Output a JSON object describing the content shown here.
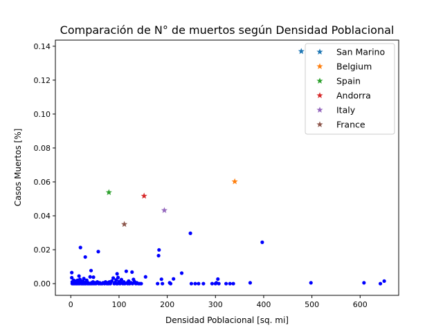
{
  "chart_data": {
    "type": "scatter",
    "title": "Comparación de N° de muertos según Densidad Poblacional",
    "xlabel": "Densidad Poblacional [sq. mi]",
    "ylabel": "Casos Muertos [%]",
    "xlim": [
      -32,
      680
    ],
    "ylim": [
      -0.0069,
      0.1436
    ],
    "xticks": [
      0,
      100,
      200,
      300,
      400,
      500,
      600
    ],
    "yticks": [
      0.0,
      0.02,
      0.04,
      0.06,
      0.08,
      0.1,
      0.12,
      0.14
    ],
    "xtick_labels": [
      "0",
      "100",
      "200",
      "300",
      "400",
      "500",
      "600"
    ],
    "ytick_labels": [
      "0.00",
      "0.02",
      "0.04",
      "0.06",
      "0.08",
      "0.10",
      "0.12",
      "0.14"
    ],
    "grid": false,
    "legend_position": "top-right",
    "background_points": {
      "color": "#0000ff",
      "marker": "dot",
      "points": [
        [
          2,
          0.0065
        ],
        [
          2,
          0.0035
        ],
        [
          3,
          0.001
        ],
        [
          3,
          0.0
        ],
        [
          5,
          0.0005
        ],
        [
          5,
          0.0
        ],
        [
          6,
          0.002
        ],
        [
          7,
          0.0
        ],
        [
          8,
          0.001
        ],
        [
          9,
          0.0003
        ],
        [
          10,
          0.0
        ],
        [
          11,
          0.0015
        ],
        [
          12,
          0.0
        ],
        [
          13,
          0.0005
        ],
        [
          14,
          0.002
        ],
        [
          15,
          0.0
        ],
        [
          16,
          0.001
        ],
        [
          17,
          0.0045
        ],
        [
          18,
          0.0
        ],
        [
          19,
          0.0025
        ],
        [
          20,
          0.0213
        ],
        [
          21,
          0.0005
        ],
        [
          22,
          0.0
        ],
        [
          23,
          0.001
        ],
        [
          24,
          0.0
        ],
        [
          25,
          0.0015
        ],
        [
          26,
          0.0
        ],
        [
          27,
          0.003
        ],
        [
          28,
          0.0005
        ],
        [
          29,
          0.0
        ],
        [
          30,
          0.0157
        ],
        [
          31,
          0.0
        ],
        [
          32,
          0.001
        ],
        [
          33,
          0.002
        ],
        [
          35,
          0.0
        ],
        [
          36,
          0.0005
        ],
        [
          38,
          0.0
        ],
        [
          40,
          0.004
        ],
        [
          41,
          0.0
        ],
        [
          42,
          0.0077
        ],
        [
          43,
          0.0005
        ],
        [
          44,
          0.0
        ],
        [
          46,
          0.001
        ],
        [
          47,
          0.0038
        ],
        [
          48,
          0.0
        ],
        [
          50,
          0.0005
        ],
        [
          52,
          0.0
        ],
        [
          55,
          0.001
        ],
        [
          57,
          0.0189
        ],
        [
          58,
          0.0
        ],
        [
          60,
          0.0005
        ],
        [
          62,
          0.0
        ],
        [
          65,
          0.0
        ],
        [
          67,
          0.0005
        ],
        [
          70,
          0.0
        ],
        [
          72,
          0.001
        ],
        [
          75,
          0.0
        ],
        [
          77,
          0.0005
        ],
        [
          78,
          0.0
        ],
        [
          80,
          0.001
        ],
        [
          82,
          0.0
        ],
        [
          85,
          0.0015
        ],
        [
          88,
          0.0033
        ],
        [
          90,
          0.0
        ],
        [
          92,
          0.0007
        ],
        [
          94,
          0.0022
        ],
        [
          95,
          0.0
        ],
        [
          96,
          0.0058
        ],
        [
          97,
          0.0
        ],
        [
          98,
          0.0036
        ],
        [
          100,
          0.0012
        ],
        [
          102,
          0.0
        ],
        [
          104,
          0.0005
        ],
        [
          105,
          0.0024
        ],
        [
          108,
          0.0
        ],
        [
          110,
          0.001
        ],
        [
          112,
          0.0
        ],
        [
          115,
          0.0073
        ],
        [
          117,
          0.0005
        ],
        [
          118,
          0.0
        ],
        [
          120,
          0.0015
        ],
        [
          122,
          0.0
        ],
        [
          125,
          0.0005
        ],
        [
          127,
          0.0068
        ],
        [
          128,
          0.0
        ],
        [
          130,
          0.0025
        ],
        [
          132,
          0.0012
        ],
        [
          135,
          0.0
        ],
        [
          137,
          0.0005
        ],
        [
          140,
          0.0
        ],
        [
          143,
          0.0
        ],
        [
          146,
          0.0
        ],
        [
          155,
          0.004
        ],
        [
          180,
          0.0
        ],
        [
          182,
          0.0165
        ],
        [
          183,
          0.0199
        ],
        [
          188,
          0.0026
        ],
        [
          190,
          0.0
        ],
        [
          205,
          0.0005
        ],
        [
          207,
          0.0
        ],
        [
          213,
          0.0028
        ],
        [
          230,
          0.0062
        ],
        [
          248,
          0.0297
        ],
        [
          250,
          0.0
        ],
        [
          258,
          0.0
        ],
        [
          265,
          0.0
        ],
        [
          275,
          0.0
        ],
        [
          293,
          0.0
        ],
        [
          300,
          0.0
        ],
        [
          302,
          0.0005
        ],
        [
          305,
          0.0027
        ],
        [
          307,
          0.0
        ],
        [
          322,
          0.0
        ],
        [
          330,
          0.0
        ],
        [
          337,
          0.0
        ],
        [
          372,
          0.0005
        ],
        [
          397,
          0.0244
        ],
        [
          498,
          0.0005
        ],
        [
          608,
          0.0005
        ],
        [
          642,
          0.0
        ],
        [
          650,
          0.0015
        ]
      ]
    },
    "series": [
      {
        "name": "San Marino",
        "color": "#1f77b4",
        "marker": "star",
        "x": 478,
        "y": 0.137
      },
      {
        "name": "Belgium",
        "color": "#ff7f0e",
        "marker": "star",
        "x": 340,
        "y": 0.0602
      },
      {
        "name": "Spain",
        "color": "#2ca02c",
        "marker": "star",
        "x": 79,
        "y": 0.0538
      },
      {
        "name": "Andorra",
        "color": "#d62728",
        "marker": "star",
        "x": 152,
        "y": 0.0517
      },
      {
        "name": "Italy",
        "color": "#9467bd",
        "marker": "star",
        "x": 194,
        "y": 0.0432
      },
      {
        "name": "France",
        "color": "#8c564b",
        "marker": "star",
        "x": 111,
        "y": 0.035
      }
    ]
  }
}
